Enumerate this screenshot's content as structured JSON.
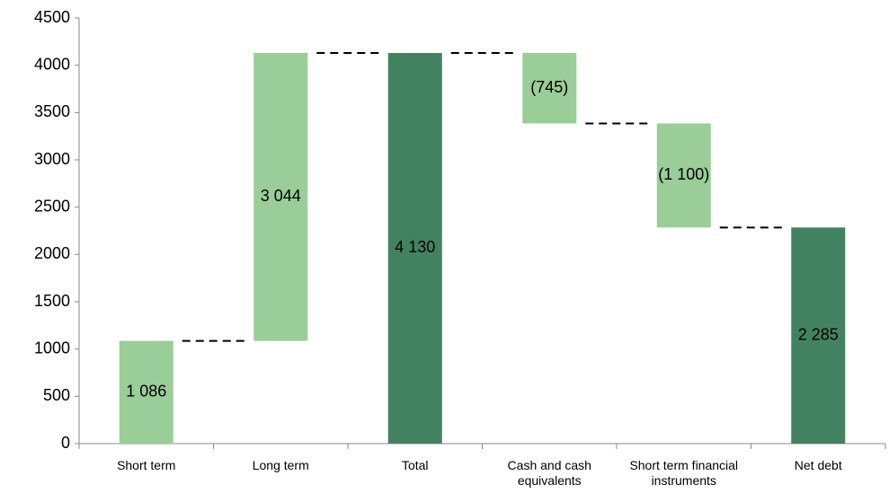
{
  "chart_data": {
    "type": "waterfall",
    "categories": [
      "Short term",
      "Long term",
      "Total",
      "Cash and cash equivalents",
      "Short term financial instruments",
      "Net debt"
    ],
    "values": [
      1086,
      3044,
      4130,
      -745,
      -1100,
      2285
    ],
    "value_labels": [
      "1 086",
      "3 044",
      "4 130",
      "(745)",
      "(1 100)",
      "2 285"
    ],
    "totals": [
      false,
      false,
      true,
      false,
      false,
      true
    ],
    "total_color": "#438260",
    "delta_color": "#9acd98",
    "ylim": [
      0,
      4500
    ],
    "yticks": [
      0,
      500,
      1000,
      1500,
      2000,
      2500,
      3000,
      3500,
      4000,
      4500
    ],
    "connectors": true
  }
}
